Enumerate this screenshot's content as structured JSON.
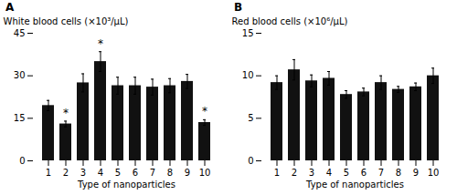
{
  "chart_data": [
    {
      "type": "bar",
      "title": "A",
      "ylabel": "White blood cells (×10³/μL)",
      "xlabel": "Type of nanoparticles",
      "categories": [
        "1",
        "2",
        "3",
        "4",
        "5",
        "6",
        "7",
        "8",
        "9",
        "10"
      ],
      "values": [
        19.5,
        13.0,
        27.5,
        35.0,
        26.5,
        26.5,
        26.0,
        26.5,
        28.0,
        13.5
      ],
      "errors": [
        1.8,
        1.0,
        3.2,
        3.5,
        3.0,
        3.0,
        2.8,
        2.5,
        2.5,
        1.0
      ],
      "color": "#111111",
      "ylim": [
        0,
        45
      ],
      "yticks": [
        0,
        15,
        30,
        45
      ],
      "annotations": [
        {
          "text": "*",
          "x": "2"
        },
        {
          "text": "*",
          "x": "4"
        },
        {
          "text": "*",
          "x": "10"
        }
      ]
    },
    {
      "type": "bar",
      "title": "B",
      "ylabel": "Red blood cells (×10⁶/μL)",
      "xlabel": "Type of nanoparticles",
      "categories": [
        "1",
        "2",
        "3",
        "4",
        "5",
        "6",
        "7",
        "8",
        "9",
        "10"
      ],
      "values": [
        9.2,
        10.7,
        9.4,
        9.7,
        7.8,
        8.1,
        9.2,
        8.4,
        8.7,
        10.0
      ],
      "errors": [
        0.8,
        1.2,
        0.7,
        0.8,
        0.45,
        0.45,
        0.8,
        0.35,
        0.45,
        0.9
      ],
      "color": "#111111",
      "ylim": [
        0,
        15
      ],
      "yticks": [
        0,
        5,
        10,
        15
      ]
    }
  ]
}
